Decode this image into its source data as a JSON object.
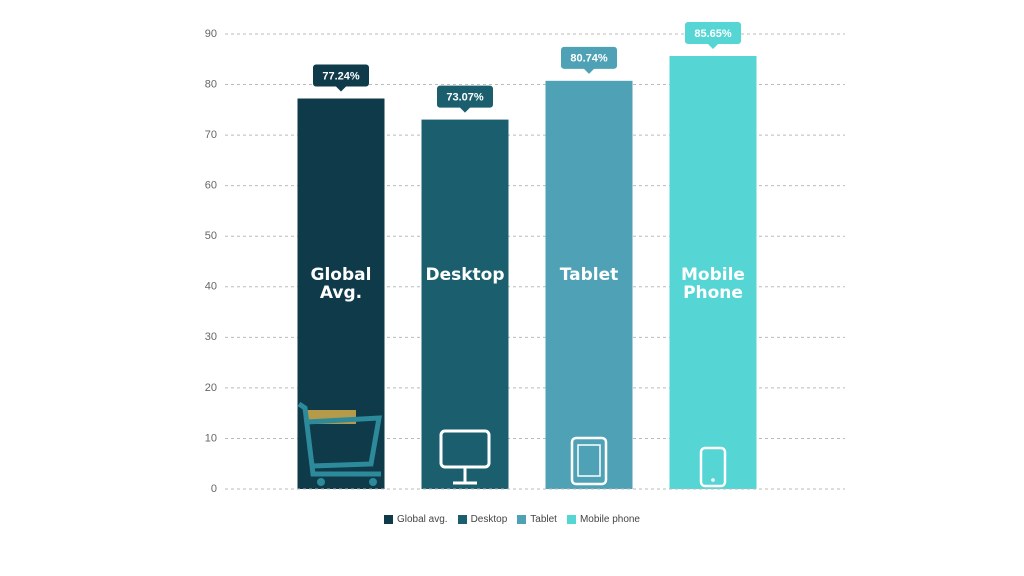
{
  "chart_data": {
    "type": "bar",
    "categories": [
      "Global Avg.",
      "Desktop",
      "Tablet",
      "Mobile Phone"
    ],
    "values": [
      77.24,
      73.07,
      80.74,
      85.65
    ],
    "value_labels": [
      "77.24%",
      "73.07%",
      "80.74%",
      "85.65%"
    ],
    "colors": [
      "#0e3a4a",
      "#1b5f6e",
      "#4fa2b6",
      "#55d5d4"
    ],
    "legend": [
      "Global avg.",
      "Desktop",
      "Tablet",
      "Mobile phone"
    ],
    "ylim": [
      0,
      90
    ],
    "yticks": [
      0,
      10,
      20,
      30,
      40,
      50,
      60,
      70,
      80,
      90
    ],
    "grid": true
  }
}
